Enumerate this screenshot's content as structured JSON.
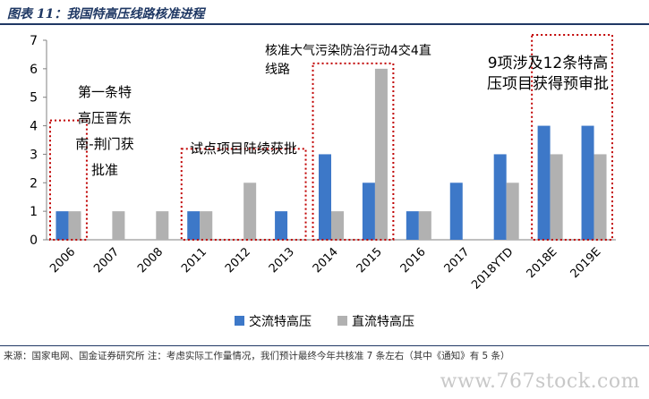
{
  "figure": {
    "title": "图表 11：我国特高压线路核准进程",
    "source": "来源：国家电网、国金证券研究所  注：考虑实际工作量情况，我们预计最终今年共核准 7 条左右（其中《通知》有 5 条）",
    "watermark": "www.767stock.com"
  },
  "colors": {
    "ac": "#3d78c8",
    "dc": "#b1b1b1",
    "highlight_box": "#c00000",
    "header": "#1f3864"
  },
  "chart_data": {
    "type": "bar",
    "categories": [
      "2006",
      "2007",
      "2008",
      "2011",
      "2012",
      "2013",
      "2014",
      "2015",
      "2016",
      "2017",
      "2018YTD",
      "2018E",
      "2019E"
    ],
    "series": [
      {
        "name": "交流特高压",
        "values": [
          1,
          0,
          0,
          1,
          0,
          1,
          3,
          2,
          1,
          2,
          3,
          4,
          4
        ]
      },
      {
        "name": "直流特高压",
        "values": [
          1,
          1,
          1,
          1,
          2,
          0,
          1,
          6,
          1,
          0,
          2,
          3,
          3
        ]
      }
    ],
    "ylim": [
      0,
      7
    ],
    "yticks": [
      "0",
      "1",
      "2",
      "3",
      "4",
      "5",
      "6",
      "7"
    ],
    "legend_position": "bottom",
    "grid": false,
    "annotations": [
      {
        "text_lines": [
          "第一条特",
          "高压晋东",
          "南-荆门获",
          "批准"
        ],
        "highlight": [
          "2006"
        ]
      },
      {
        "text_lines": [
          "试点项目陆续获批"
        ],
        "highlight": [
          "2011",
          "2012",
          "2013"
        ]
      },
      {
        "text_lines": [
          "核准大气污染防治行动4交4直",
          "线路"
        ],
        "highlight": [
          "2014",
          "2015"
        ]
      },
      {
        "text_lines": [
          "9项涉及12条特高",
          "压项目获得预审批"
        ],
        "highlight": [
          "2018E",
          "2019E"
        ]
      }
    ]
  }
}
